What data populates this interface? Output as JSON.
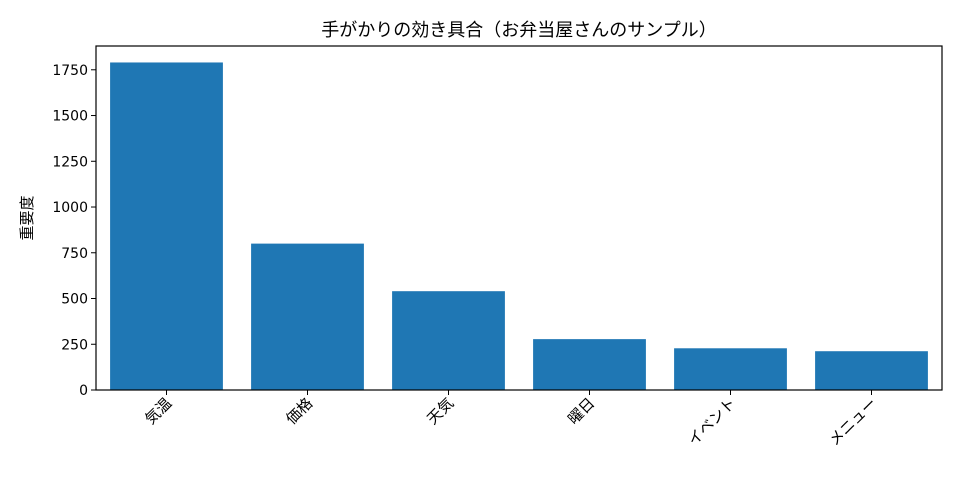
{
  "chart_data": {
    "type": "bar",
    "title": "手がかりの効き具合（お弁当屋さんのサンプル）",
    "xlabel": "",
    "ylabel": "重要度",
    "categories": [
      "気温",
      "価格",
      "天気",
      "曜日",
      "イベント",
      "メニュー"
    ],
    "values": [
      1790,
      800,
      540,
      278,
      228,
      212
    ],
    "ylim": [
      0,
      1880
    ],
    "yticks": [
      0,
      250,
      500,
      750,
      1000,
      1250,
      1500,
      1750
    ],
    "bar_color": "#1f77b4",
    "grid": false,
    "legend": "none"
  }
}
